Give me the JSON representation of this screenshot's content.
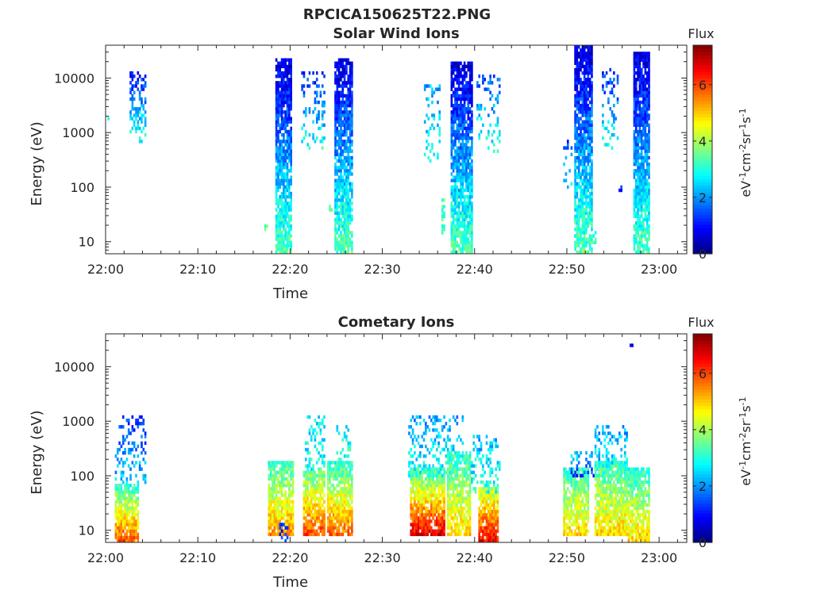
{
  "figure": {
    "title": "RPCICA150625T22.PNG"
  },
  "chart_data": [
    {
      "type": "heatmap",
      "title": "Solar Wind Ions",
      "xlabel": "Time",
      "ylabel": "Energy (eV)",
      "x_range_minutes": [
        0,
        63
      ],
      "x_ticks": [
        {
          "m": 0,
          "label": "22:00"
        },
        {
          "m": 10,
          "label": "22:10"
        },
        {
          "m": 20,
          "label": "22:20"
        },
        {
          "m": 30,
          "label": "22:30"
        },
        {
          "m": 40,
          "label": "22:40"
        },
        {
          "m": 50,
          "label": "22:50"
        },
        {
          "m": 60,
          "label": "23:00"
        }
      ],
      "y_scale": "log",
      "y_range": [
        6,
        40000
      ],
      "y_ticks": [
        {
          "v": 10,
          "label": "10"
        },
        {
          "v": 100,
          "label": "100"
        },
        {
          "v": 1000,
          "label": "1000"
        },
        {
          "v": 10000,
          "label": "10000"
        }
      ],
      "colorbar": {
        "label": "Flux",
        "unit_label": "eV-1cm-2sr-1s-1",
        "range": [
          0,
          7.4
        ],
        "ticks": [
          0,
          2,
          4,
          6
        ],
        "colormap": "jet"
      },
      "bursts": [
        {
          "t0": 0.0,
          "t1": 0.2,
          "e_lo": 1600,
          "e_hi": 2000,
          "lo_val": 3.0,
          "hi_val": 2.8,
          "density": 0.6
        },
        {
          "t0": 2.6,
          "t1": 4.3,
          "e_lo": 650,
          "e_hi": 14000,
          "lo_val": 3.0,
          "hi_val": 1.0,
          "density": 0.45
        },
        {
          "t0": 17.2,
          "t1": 17.4,
          "e_lo": 16,
          "e_hi": 22,
          "lo_val": 3.5,
          "hi_val": 3.5,
          "density": 0.8
        },
        {
          "t0": 18.4,
          "t1": 20.0,
          "e_lo": 6,
          "e_hi": 24000,
          "lo_val": 3.4,
          "hi_val": 0.6,
          "density": 0.85
        },
        {
          "t0": 21.2,
          "t1": 23.6,
          "e_lo": 500,
          "e_hi": 14000,
          "lo_val": 3.0,
          "hi_val": 1.0,
          "density": 0.25
        },
        {
          "t0": 24.2,
          "t1": 24.4,
          "e_lo": 35,
          "e_hi": 45,
          "lo_val": 3.0,
          "hi_val": 3.0,
          "density": 0.8
        },
        {
          "t0": 24.8,
          "t1": 26.7,
          "e_lo": 6,
          "e_hi": 24000,
          "lo_val": 3.4,
          "hi_val": 0.6,
          "density": 0.85
        },
        {
          "t0": 34.5,
          "t1": 36.2,
          "e_lo": 300,
          "e_hi": 8000,
          "lo_val": 3.0,
          "hi_val": 2.0,
          "density": 0.25
        },
        {
          "t0": 36.4,
          "t1": 36.7,
          "e_lo": 14,
          "e_hi": 60,
          "lo_val": 3.3,
          "hi_val": 3.3,
          "density": 0.6
        },
        {
          "t0": 37.4,
          "t1": 39.6,
          "e_lo": 6,
          "e_hi": 20000,
          "lo_val": 3.4,
          "hi_val": 0.6,
          "density": 0.85
        },
        {
          "t0": 40.2,
          "t1": 42.6,
          "e_lo": 400,
          "e_hi": 12000,
          "lo_val": 3.0,
          "hi_val": 1.5,
          "density": 0.2
        },
        {
          "t0": 49.6,
          "t1": 50.5,
          "e_lo": 100,
          "e_hi": 800,
          "lo_val": 2.7,
          "hi_val": 1.2,
          "density": 0.25
        },
        {
          "t0": 50.8,
          "t1": 52.6,
          "e_lo": 6,
          "e_hi": 40000,
          "lo_val": 3.4,
          "hi_val": 0.6,
          "density": 0.85
        },
        {
          "t0": 52.8,
          "t1": 53.0,
          "e_lo": 8,
          "e_hi": 16,
          "lo_val": 3.3,
          "hi_val": 3.3,
          "density": 0.6
        },
        {
          "t0": 53.8,
          "t1": 55.4,
          "e_lo": 500,
          "e_hi": 16000,
          "lo_val": 3.0,
          "hi_val": 1.0,
          "density": 0.25
        },
        {
          "t0": 55.6,
          "t1": 55.8,
          "e_lo": 80,
          "e_hi": 110,
          "lo_val": 1.0,
          "hi_val": 1.0,
          "density": 0.8
        },
        {
          "t0": 57.2,
          "t1": 58.9,
          "e_lo": 6,
          "e_hi": 30000,
          "lo_val": 3.4,
          "hi_val": 0.6,
          "density": 0.85
        }
      ]
    },
    {
      "type": "heatmap",
      "title": "Cometary Ions",
      "xlabel": "Time",
      "ylabel": "Energy (eV)",
      "x_range_minutes": [
        0,
        63
      ],
      "x_ticks": [
        {
          "m": 0,
          "label": "22:00"
        },
        {
          "m": 10,
          "label": "22:10"
        },
        {
          "m": 20,
          "label": "22:20"
        },
        {
          "m": 30,
          "label": "22:30"
        },
        {
          "m": 40,
          "label": "22:40"
        },
        {
          "m": 50,
          "label": "22:50"
        },
        {
          "m": 60,
          "label": "23:00"
        }
      ],
      "y_scale": "log",
      "y_range": [
        6,
        40000
      ],
      "y_ticks": [
        {
          "v": 10,
          "label": "10"
        },
        {
          "v": 100,
          "label": "100"
        },
        {
          "v": 1000,
          "label": "1000"
        },
        {
          "v": 10000,
          "label": "10000"
        }
      ],
      "colorbar": {
        "label": "Flux",
        "unit_label": "eV-1cm-2sr-1s-1",
        "range": [
          0,
          7.4
        ],
        "ticks": [
          0,
          2,
          4,
          6
        ],
        "colormap": "jet"
      },
      "bursts": [
        {
          "t0": 1.0,
          "t1": 4.3,
          "e_lo": 70,
          "e_hi": 1200,
          "lo_val": 2.5,
          "hi_val": 1.2,
          "density": 0.3
        },
        {
          "t0": 1.0,
          "t1": 3.4,
          "e_lo": 6,
          "e_hi": 70,
          "lo_val": 6.0,
          "hi_val": 3.0,
          "density": 0.9
        },
        {
          "t0": 17.6,
          "t1": 20.2,
          "e_lo": 8,
          "e_hi": 200,
          "lo_val": 5.5,
          "hi_val": 3.0,
          "density": 0.85
        },
        {
          "t0": 18.8,
          "t1": 19.6,
          "e_lo": 6,
          "e_hi": 14,
          "lo_val": 1.2,
          "hi_val": 1.2,
          "density": 0.5
        },
        {
          "t0": 21.4,
          "t1": 23.6,
          "e_lo": 8,
          "e_hi": 120,
          "lo_val": 6.0,
          "hi_val": 3.5,
          "density": 0.85
        },
        {
          "t0": 21.6,
          "t1": 23.6,
          "e_lo": 120,
          "e_hi": 1300,
          "lo_val": 3.0,
          "hi_val": 2.5,
          "density": 0.3
        },
        {
          "t0": 24.0,
          "t1": 26.6,
          "e_lo": 8,
          "e_hi": 200,
          "lo_val": 5.8,
          "hi_val": 3.0,
          "density": 0.85
        },
        {
          "t0": 25.0,
          "t1": 26.5,
          "e_lo": 200,
          "e_hi": 800,
          "lo_val": 3.0,
          "hi_val": 2.5,
          "density": 0.3
        },
        {
          "t0": 33.0,
          "t1": 36.6,
          "e_lo": 8,
          "e_hi": 150,
          "lo_val": 6.8,
          "hi_val": 3.0,
          "density": 0.9
        },
        {
          "t0": 32.8,
          "t1": 38.6,
          "e_lo": 100,
          "e_hi": 1300,
          "lo_val": 3.0,
          "hi_val": 2.0,
          "density": 0.3
        },
        {
          "t0": 37.0,
          "t1": 39.4,
          "e_lo": 8,
          "e_hi": 300,
          "lo_val": 5.0,
          "hi_val": 3.0,
          "density": 0.85
        },
        {
          "t0": 40.4,
          "t1": 42.4,
          "e_lo": 6,
          "e_hi": 60,
          "lo_val": 6.6,
          "hi_val": 4.0,
          "density": 0.9
        },
        {
          "t0": 39.6,
          "t1": 42.6,
          "e_lo": 50,
          "e_hi": 600,
          "lo_val": 3.0,
          "hi_val": 2.2,
          "density": 0.3
        },
        {
          "t0": 49.6,
          "t1": 52.2,
          "e_lo": 8,
          "e_hi": 150,
          "lo_val": 5.0,
          "hi_val": 3.0,
          "density": 0.85
        },
        {
          "t0": 50.4,
          "t1": 53.4,
          "e_lo": 90,
          "e_hi": 300,
          "lo_val": 1.2,
          "hi_val": 2.5,
          "density": 0.3
        },
        {
          "t0": 53.0,
          "t1": 56.4,
          "e_lo": 8,
          "e_hi": 200,
          "lo_val": 5.0,
          "hi_val": 3.0,
          "density": 0.85
        },
        {
          "t0": 52.8,
          "t1": 56.4,
          "e_lo": 150,
          "e_hi": 900,
          "lo_val": 2.8,
          "hi_val": 2.0,
          "density": 0.3
        },
        {
          "t0": 56.6,
          "t1": 58.8,
          "e_lo": 6,
          "e_hi": 150,
          "lo_val": 5.0,
          "hi_val": 3.0,
          "density": 0.85
        },
        {
          "t0": 56.8,
          "t1": 57.0,
          "e_lo": 23000,
          "e_hi": 25000,
          "lo_val": 1.0,
          "hi_val": 1.0,
          "density": 1.0
        }
      ]
    }
  ]
}
